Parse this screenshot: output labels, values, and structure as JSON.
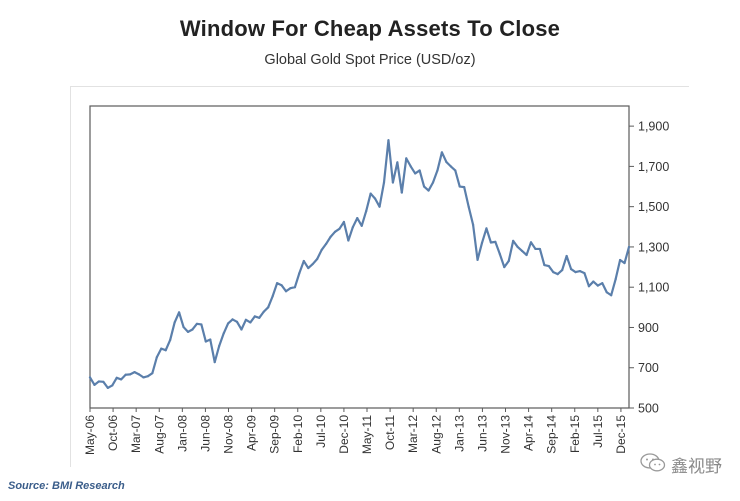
{
  "header": {
    "title": "Window For Cheap Assets To Close",
    "subtitle": "Global Gold Spot Price (USD/oz)"
  },
  "footer": {
    "source": "Source: BMI Research",
    "watermark": "鑫视野"
  },
  "colors": {
    "line": "#5b7fab",
    "axis": "#5b5b5b",
    "text": "#333333"
  },
  "chart_data": {
    "type": "line",
    "title": "Window For Cheap Assets To Close",
    "subtitle": "Global Gold Spot Price (USD/oz)",
    "xlabel": "",
    "ylabel": "",
    "ylim": [
      500,
      2000
    ],
    "y_ticks": [
      500,
      700,
      900,
      1100,
      1300,
      1500,
      1700,
      1900
    ],
    "y_tick_labels": [
      "500",
      "700",
      "900",
      "1,100",
      "1,300",
      "1,500",
      "1,700",
      "1,900"
    ],
    "y_axis_side": "right",
    "x_tick_labels": [
      "May-06",
      "Oct-06",
      "Mar-07",
      "Aug-07",
      "Jan-08",
      "Jun-08",
      "Nov-08",
      "Apr-09",
      "Sep-09",
      "Feb-10",
      "Jul-10",
      "Dec-10",
      "May-11",
      "Oct-11",
      "Mar-12",
      "Aug-12",
      "Jan-13",
      "Jun-13",
      "Nov-13",
      "Apr-14",
      "Sep-14",
      "Feb-15",
      "Jul-15",
      "Dec-15"
    ],
    "x_start": "May-06",
    "grid": false,
    "series": [
      {
        "name": "Gold spot price",
        "values": [
          652,
          615,
          632,
          630,
          600,
          612,
          650,
          642,
          665,
          667,
          678,
          667,
          652,
          658,
          673,
          752,
          795,
          787,
          838,
          925,
          975,
          902,
          878,
          890,
          918,
          915,
          830,
          840,
          728,
          808,
          870,
          920,
          940,
          928,
          890,
          938,
          925,
          955,
          948,
          978,
          1000,
          1055,
          1120,
          1110,
          1080,
          1095,
          1100,
          1170,
          1230,
          1195,
          1215,
          1240,
          1285,
          1315,
          1350,
          1375,
          1390,
          1424,
          1332,
          1398,
          1443,
          1405,
          1478,
          1565,
          1540,
          1500,
          1620,
          1830,
          1620,
          1720,
          1570,
          1740,
          1700,
          1665,
          1680,
          1600,
          1580,
          1620,
          1680,
          1770,
          1722,
          1700,
          1680,
          1600,
          1597,
          1500,
          1410,
          1236,
          1320,
          1392,
          1322,
          1325,
          1265,
          1200,
          1230,
          1330,
          1300,
          1280,
          1260,
          1323,
          1290,
          1290,
          1210,
          1205,
          1175,
          1165,
          1185,
          1255,
          1190,
          1175,
          1180,
          1170,
          1105,
          1128,
          1108,
          1120,
          1075,
          1060,
          1140,
          1235,
          1220,
          1300
        ]
      }
    ]
  }
}
